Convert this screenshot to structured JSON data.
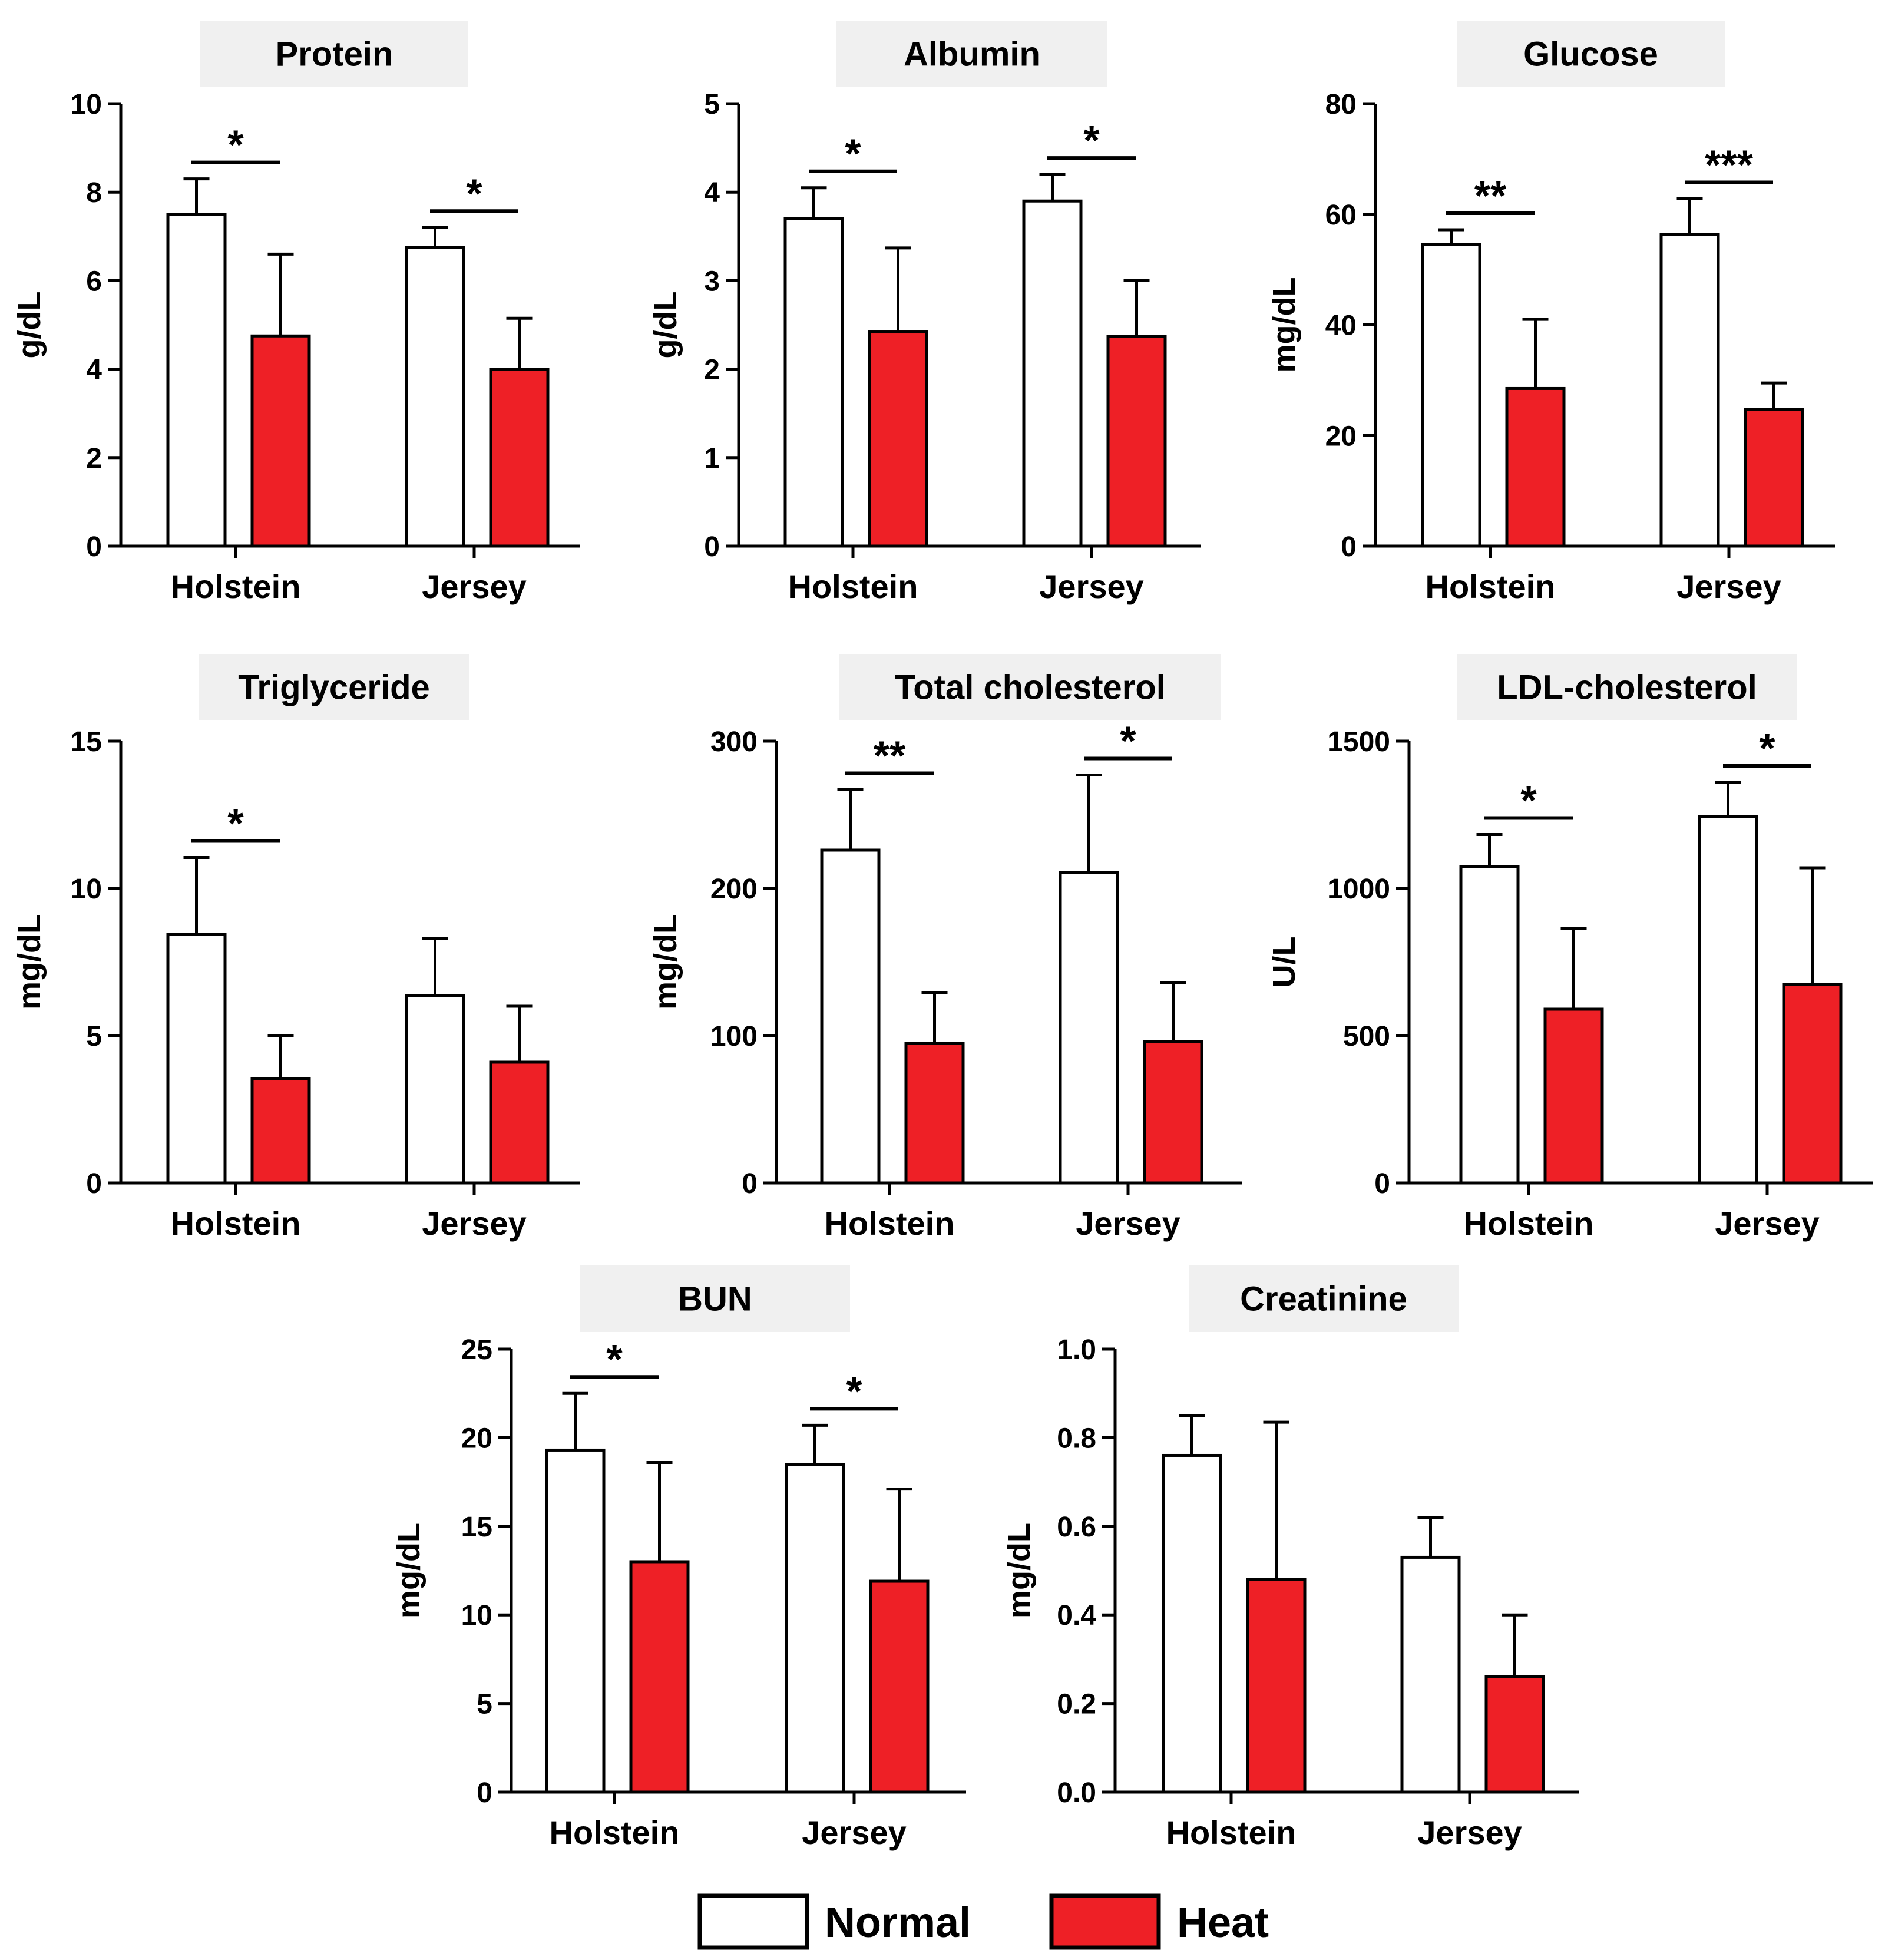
{
  "colors": {
    "normal": "#ffffff",
    "heat": "#ee2026",
    "axis": "#000000",
    "title_bg": "#f0f0f0"
  },
  "legend": [
    {
      "label": "Normal",
      "color": "#ffffff"
    },
    {
      "label": "Heat",
      "color": "#ee2026"
    }
  ],
  "chart_data": [
    {
      "type": "bar",
      "title": "Protein",
      "ylabel": "g/dL",
      "categories": [
        "Holstein",
        "Jersey"
      ],
      "ylim": [
        0,
        10
      ],
      "yticks": [
        0,
        2,
        4,
        6,
        8,
        10
      ],
      "tick_labels": [
        "0",
        "2",
        "4",
        "6",
        "8",
        "10"
      ],
      "series": [
        {
          "name": "Normal",
          "values": [
            7.5,
            6.75
          ],
          "errors": [
            0.8,
            0.45
          ]
        },
        {
          "name": "Heat",
          "values": [
            4.75,
            4.0
          ],
          "errors": [
            1.85,
            1.15
          ]
        }
      ],
      "significance": [
        {
          "category": "Holstein",
          "label": "*"
        },
        {
          "category": "Jersey",
          "label": "*"
        }
      ]
    },
    {
      "type": "bar",
      "title": "Albumin",
      "ylabel": "g/dL",
      "categories": [
        "Holstein",
        "Jersey"
      ],
      "ylim": [
        0,
        5
      ],
      "yticks": [
        0,
        1,
        2,
        3,
        4,
        5
      ],
      "tick_labels": [
        "0",
        "1",
        "2",
        "3",
        "4",
        "5"
      ],
      "series": [
        {
          "name": "Normal",
          "values": [
            3.7,
            3.9
          ],
          "errors": [
            0.35,
            0.3
          ]
        },
        {
          "name": "Heat",
          "values": [
            2.42,
            2.37
          ],
          "errors": [
            0.95,
            0.63
          ]
        }
      ],
      "significance": [
        {
          "category": "Holstein",
          "label": "*"
        },
        {
          "category": "Jersey",
          "label": "*"
        }
      ]
    },
    {
      "type": "bar",
      "title": "Glucose",
      "ylabel": "mg/dL",
      "categories": [
        "Holstein",
        "Jersey"
      ],
      "ylim": [
        0,
        80
      ],
      "yticks": [
        0,
        20,
        40,
        60,
        80
      ],
      "tick_labels": [
        "0",
        "20",
        "40",
        "60",
        "80"
      ],
      "series": [
        {
          "name": "Normal",
          "values": [
            54.5,
            56.3
          ],
          "errors": [
            2.7,
            6.5
          ]
        },
        {
          "name": "Heat",
          "values": [
            28.5,
            24.7
          ],
          "errors": [
            12.5,
            4.8
          ]
        }
      ],
      "significance": [
        {
          "category": "Holstein",
          "label": "**"
        },
        {
          "category": "Jersey",
          "label": "***"
        }
      ]
    },
    {
      "type": "bar",
      "title": "Triglyceride",
      "ylabel": "mg/dL",
      "categories": [
        "Holstein",
        "Jersey"
      ],
      "ylim": [
        0,
        15
      ],
      "yticks": [
        0,
        5,
        10,
        15
      ],
      "tick_labels": [
        "0",
        "5",
        "10",
        "15"
      ],
      "series": [
        {
          "name": "Normal",
          "values": [
            8.45,
            6.35
          ],
          "errors": [
            2.6,
            1.95
          ]
        },
        {
          "name": "Heat",
          "values": [
            3.55,
            4.1
          ],
          "errors": [
            1.45,
            1.9
          ]
        }
      ],
      "significance": [
        {
          "category": "Holstein",
          "label": "*"
        }
      ]
    },
    {
      "type": "bar",
      "title": "Total cholesterol",
      "ylabel": "mg/dL",
      "categories": [
        "Holstein",
        "Jersey"
      ],
      "ylim": [
        0,
        300
      ],
      "yticks": [
        0,
        100,
        200,
        300
      ],
      "tick_labels": [
        "0",
        "100",
        "200",
        "300"
      ],
      "series": [
        {
          "name": "Normal",
          "values": [
            226,
            211
          ],
          "errors": [
            41,
            66
          ]
        },
        {
          "name": "Heat",
          "values": [
            95,
            96
          ],
          "errors": [
            34,
            40
          ]
        }
      ],
      "significance": [
        {
          "category": "Holstein",
          "label": "**"
        },
        {
          "category": "Jersey",
          "label": "*"
        }
      ]
    },
    {
      "type": "bar",
      "title": "LDL-cholesterol",
      "ylabel": "U/L",
      "categories": [
        "Holstein",
        "Jersey"
      ],
      "ylim": [
        0,
        1500
      ],
      "yticks": [
        0,
        500,
        1000,
        1500
      ],
      "tick_labels": [
        "0",
        "500",
        "1000",
        "1500"
      ],
      "series": [
        {
          "name": "Normal",
          "values": [
            1075,
            1245
          ],
          "errors": [
            108,
            115
          ]
        },
        {
          "name": "Heat",
          "values": [
            590,
            675
          ],
          "errors": [
            275,
            395
          ]
        }
      ],
      "significance": [
        {
          "category": "Holstein",
          "label": "*"
        },
        {
          "category": "Jersey",
          "label": "*"
        }
      ]
    },
    {
      "type": "bar",
      "title": "BUN",
      "ylabel": "mg/dL",
      "categories": [
        "Holstein",
        "Jersey"
      ],
      "ylim": [
        0,
        25
      ],
      "yticks": [
        0,
        5,
        10,
        15,
        20,
        25
      ],
      "tick_labels": [
        "0",
        "5",
        "10",
        "15",
        "20",
        "25"
      ],
      "series": [
        {
          "name": "Normal",
          "values": [
            19.3,
            18.5
          ],
          "errors": [
            3.2,
            2.2
          ]
        },
        {
          "name": "Heat",
          "values": [
            13.0,
            11.9
          ],
          "errors": [
            5.6,
            5.2
          ]
        }
      ],
      "significance": [
        {
          "category": "Holstein",
          "label": "*"
        },
        {
          "category": "Jersey",
          "label": "*"
        }
      ]
    },
    {
      "type": "bar",
      "title": "Creatinine",
      "ylabel": "mg/dL",
      "categories": [
        "Holstein",
        "Jersey"
      ],
      "ylim": [
        0,
        1.0
      ],
      "yticks": [
        0,
        0.2,
        0.4,
        0.6,
        0.8,
        1.0
      ],
      "tick_labels": [
        "0.0",
        "0.2",
        "0.4",
        "0.6",
        "0.8",
        "1.0"
      ],
      "series": [
        {
          "name": "Normal",
          "values": [
            0.76,
            0.53
          ],
          "errors": [
            0.09,
            0.09
          ]
        },
        {
          "name": "Heat",
          "values": [
            0.48,
            0.26
          ],
          "errors": [
            0.355,
            0.14
          ]
        }
      ],
      "significance": []
    }
  ]
}
